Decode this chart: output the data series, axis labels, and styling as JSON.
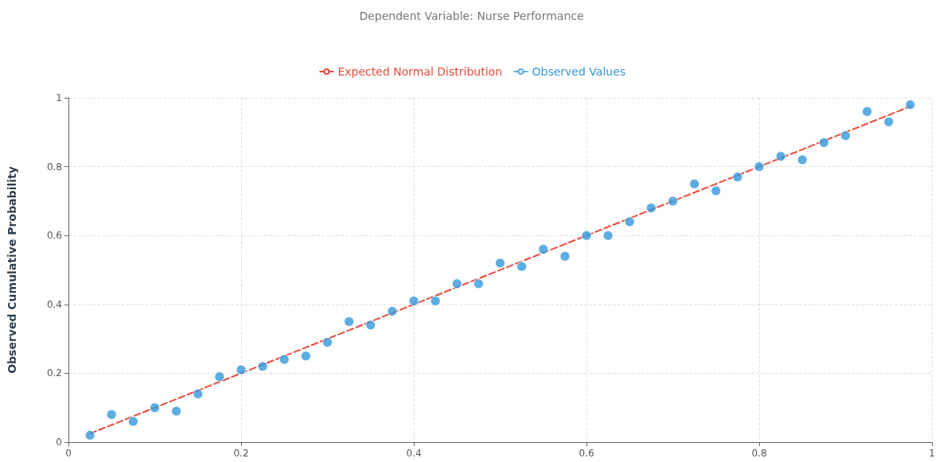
{
  "chart_data": {
    "type": "scatter",
    "title": "Dependent Variable: Nurse Performance",
    "ylabel": "Observed Cumulative Probability",
    "xlim": [
      0,
      1
    ],
    "xticks": [
      0,
      0.2,
      0.4,
      0.6,
      0.8,
      1
    ],
    "ylim": [
      0,
      1
    ],
    "yticks": [
      0,
      0.2,
      0.4,
      0.6,
      0.8,
      1
    ],
    "grid": true,
    "legend": "top",
    "series": [
      {
        "name": "Expected Normal Distribution",
        "type": "line",
        "line_style": "dashed",
        "marker": "none",
        "color": "#e74c3c",
        "x": [
          0.025,
          0.975
        ],
        "values": [
          0.025,
          0.975
        ]
      },
      {
        "name": "Observed Values",
        "marker": "circle",
        "color": "#3498db",
        "x": [
          0.025,
          0.05,
          0.075,
          0.1,
          0.125,
          0.15,
          0.175,
          0.2,
          0.225,
          0.25,
          0.275,
          0.3,
          0.325,
          0.35,
          0.375,
          0.4,
          0.425,
          0.45,
          0.475,
          0.5,
          0.525,
          0.55,
          0.575,
          0.6,
          0.625,
          0.65,
          0.675,
          0.7,
          0.725,
          0.75,
          0.775,
          0.8,
          0.825,
          0.85,
          0.875,
          0.9,
          0.925,
          0.95,
          0.975
        ],
        "values": [
          0.02,
          0.08,
          0.06,
          0.1,
          0.09,
          0.14,
          0.19,
          0.21,
          0.22,
          0.24,
          0.25,
          0.29,
          0.35,
          0.34,
          0.38,
          0.41,
          0.41,
          0.46,
          0.46,
          0.52,
          0.51,
          0.56,
          0.54,
          0.6,
          0.6,
          0.64,
          0.68,
          0.7,
          0.75,
          0.73,
          0.77,
          0.8,
          0.83,
          0.82,
          0.87,
          0.89,
          0.96,
          0.93,
          0.98
        ]
      }
    ]
  }
}
